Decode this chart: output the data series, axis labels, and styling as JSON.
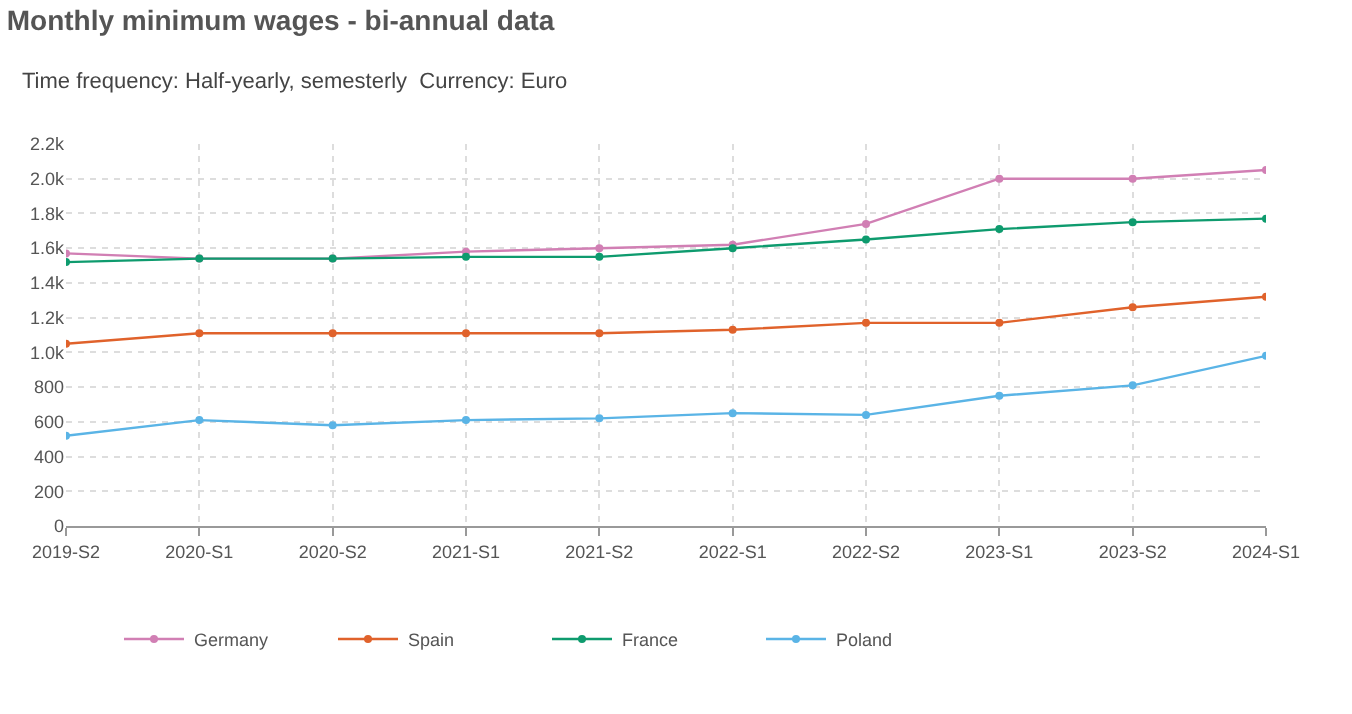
{
  "chart_data": {
    "type": "line",
    "title": "Monthly minimum wages - bi-annual data",
    "subtitle": "Time frequency: Half-yearly, semesterly  Currency: Euro",
    "categories": [
      "2019-S2",
      "2020-S1",
      "2020-S2",
      "2021-S1",
      "2021-S2",
      "2022-S1",
      "2022-S2",
      "2023-S1",
      "2023-S2",
      "2024-S1"
    ],
    "series": [
      {
        "name": "Germany",
        "color": "#d17fb4",
        "values": [
          1570,
          1540,
          1540,
          1580,
          1600,
          1620,
          1740,
          2000,
          2000,
          2050
        ]
      },
      {
        "name": "Spain",
        "color": "#e0622b",
        "values": [
          1050,
          1110,
          1110,
          1110,
          1110,
          1130,
          1170,
          1170,
          1260,
          1320
        ]
      },
      {
        "name": "France",
        "color": "#0e9b6e",
        "values": [
          1520,
          1540,
          1540,
          1550,
          1550,
          1600,
          1650,
          1710,
          1750,
          1770
        ]
      },
      {
        "name": "Poland",
        "color": "#5ab4e6",
        "values": [
          520,
          610,
          580,
          610,
          620,
          650,
          640,
          750,
          810,
          980
        ]
      }
    ],
    "ylim": [
      0,
      2200
    ],
    "yticks": [
      0,
      200,
      400,
      600,
      800,
      {
        "value": 1000,
        "label": "1.0k"
      },
      {
        "value": 1200,
        "label": "1.2k"
      },
      {
        "value": 1400,
        "label": "1.4k"
      },
      {
        "value": 1600,
        "label": "1.6k"
      },
      {
        "value": 1800,
        "label": "1.8k"
      },
      {
        "value": 2000,
        "label": "2.0k"
      },
      {
        "value": 2200,
        "label": "2.2k"
      }
    ],
    "grid": true,
    "legend": "bottom left",
    "marker": "circle",
    "line_style": "solid"
  }
}
